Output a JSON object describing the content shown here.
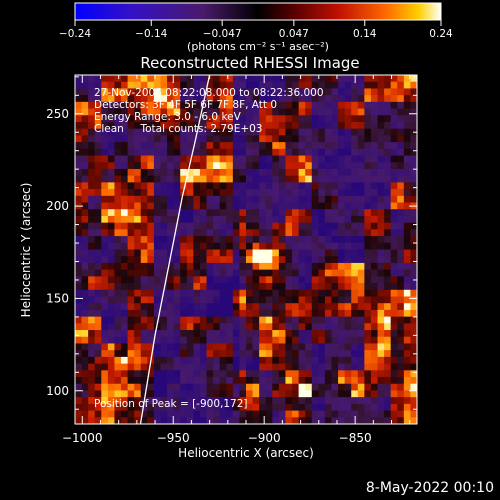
{
  "chart_data": {
    "type": "heatmap",
    "title": "Reconstructed RHESSI Image",
    "xlabel": "Heliocentric X (arcsec)",
    "ylabel": "Heliocentric Y (arcsec)",
    "xlim": [
      -1004,
      -816
    ],
    "ylim": [
      82,
      271
    ],
    "x_ticks": [
      -1000,
      -950,
      -900,
      -850
    ],
    "x_tick_labels": [
      "−1000",
      "−950",
      "−900",
      "−850"
    ],
    "y_ticks": [
      100,
      150,
      200,
      250
    ],
    "y_tick_labels": [
      "100",
      "150",
      "200",
      "250"
    ],
    "colorbar": {
      "min": -0.24,
      "max": 0.24,
      "ticks": [
        -0.24,
        -0.14,
        -0.047,
        0.047,
        0.14,
        0.24
      ],
      "tick_labels": [
        "−0.24",
        "−0.14",
        "−0.047",
        "0.047",
        "0.14",
        "0.24"
      ],
      "unit_label": "(photons cm⁻² s⁻¹ asec⁻²)"
    },
    "annotations": {
      "time_range": "27-Nov-2006 08:22:08.000 to 08:22:36.000",
      "detectors": "Detectors: 3F 4F 5F 6F 7F 8F, Att 0",
      "energy_range": "Energy Range: 3.0 - 6.0 keV",
      "algorithm_counts": "Clean     Total counts: 2.79E+03",
      "peak_position": "Position of Peak = [-900,172]"
    },
    "peak": {
      "x": -900,
      "y": 172,
      "value": 0.24
    },
    "limb_curve": [
      [
        -968,
        82
      ],
      [
        -960,
        130
      ],
      [
        -952,
        170
      ],
      [
        -945,
        205
      ],
      [
        -938,
        235
      ],
      [
        -930,
        271
      ]
    ],
    "grid": false,
    "colormap": [
      "#0000ff",
      "#4010b0",
      "#3a1a5a",
      "#200a20",
      "#5a0a0a",
      "#b81000",
      "#ff4000",
      "#ffa000",
      "#ffffff"
    ]
  },
  "footer": {
    "date_stamp": "8-May-2022 00:10"
  }
}
